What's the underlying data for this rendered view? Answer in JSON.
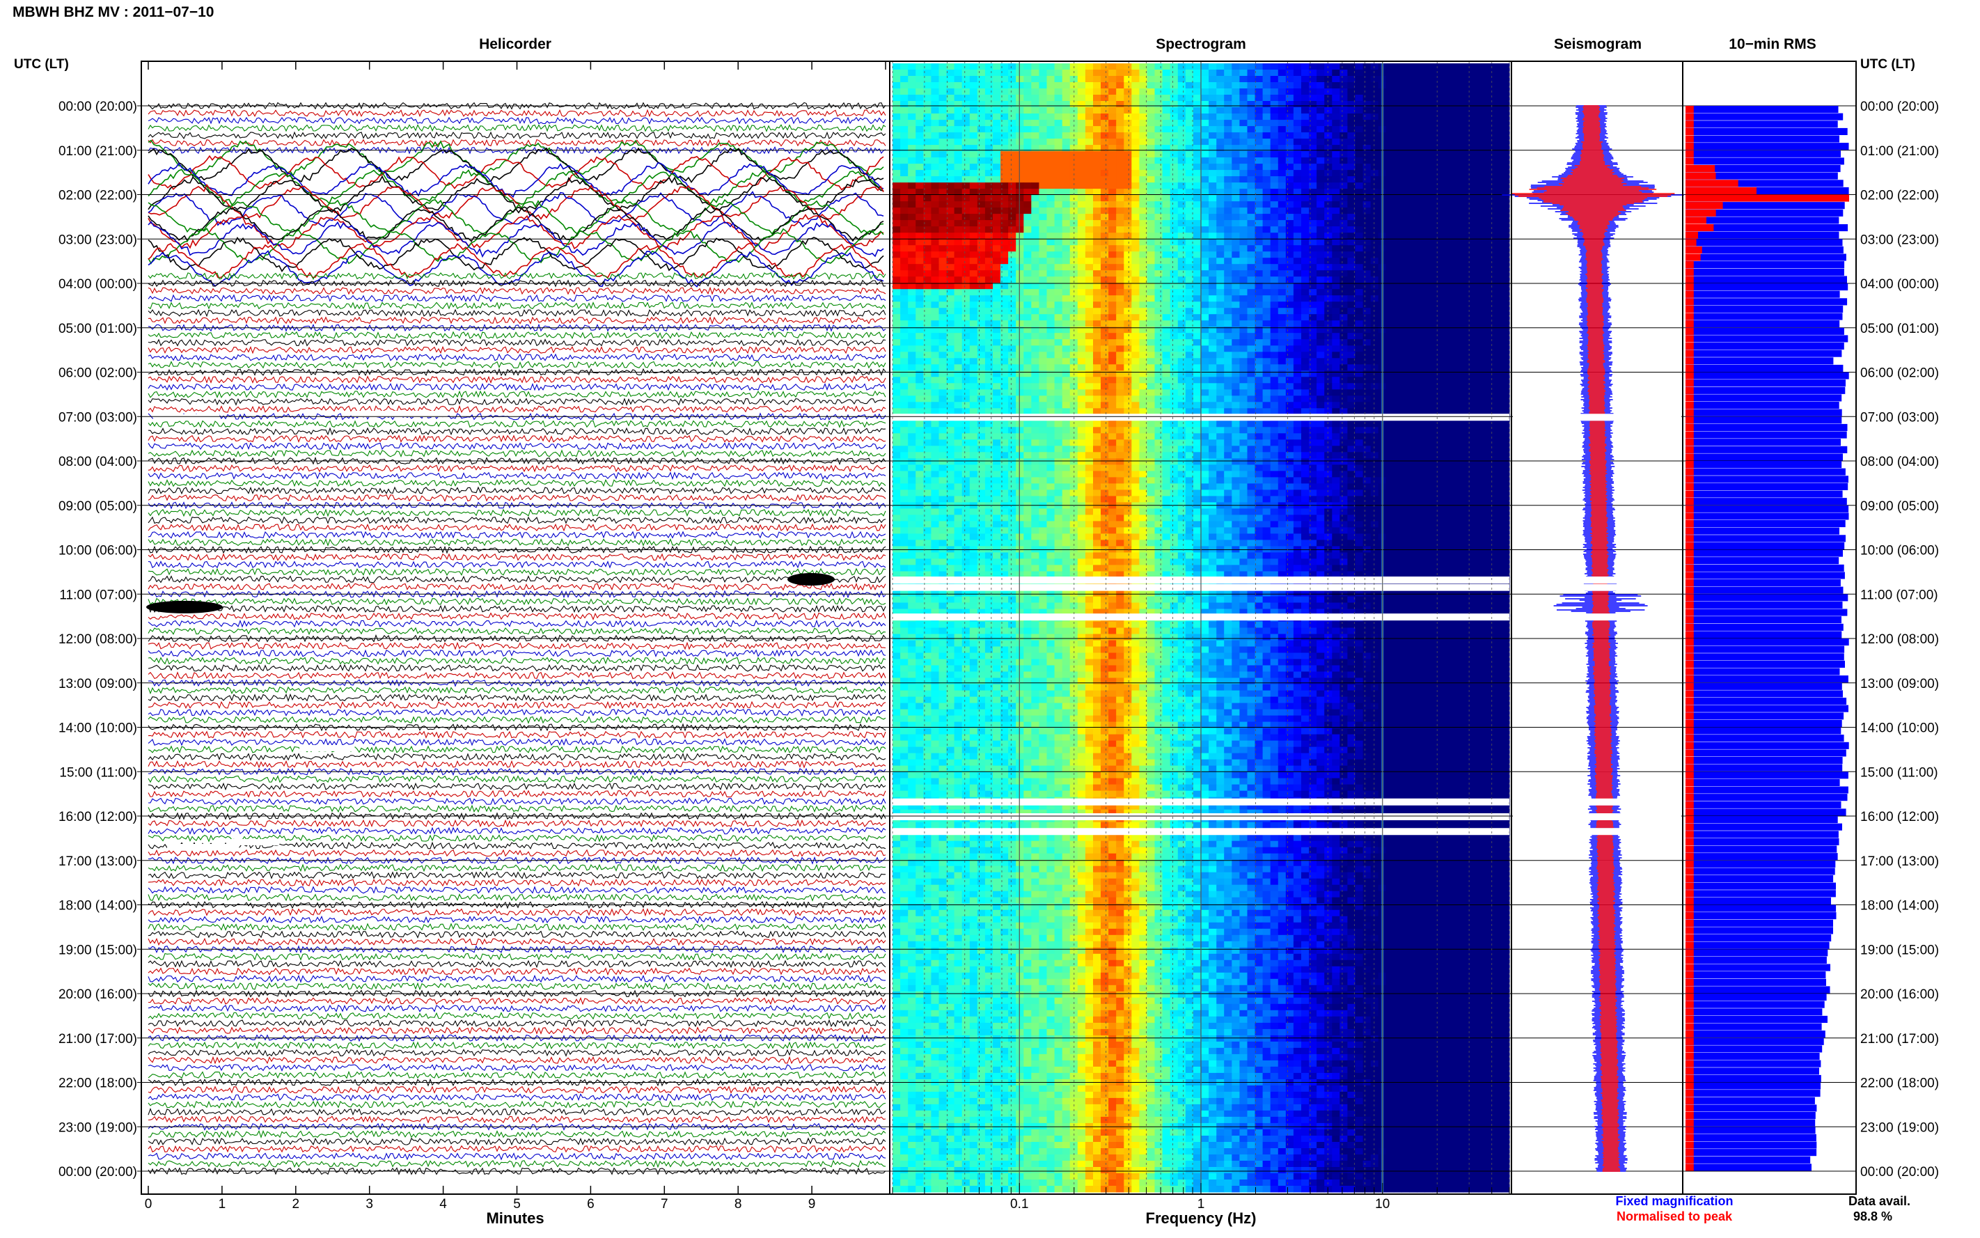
{
  "header": {
    "title": "MBWH BHZ MV : 2011−07−10",
    "time_label": "UTC (LT)"
  },
  "colors": {
    "trace_cycle": [
      "#000000",
      "#cc0000",
      "#0000cc",
      "#008800"
    ],
    "fixed_magnification": "#0000ff",
    "normalised_to_peak": "#ff0000"
  },
  "chart_data": [
    {
      "type": "line",
      "title": "Helicorder",
      "xlabel": "Minutes",
      "xlim": [
        0,
        10
      ],
      "x_ticks": [
        "0",
        "1",
        "2",
        "3",
        "4",
        "5",
        "6",
        "7",
        "8",
        "9"
      ],
      "y_ticks_left": [
        "00:00 (20:00)",
        "01:00 (21:00)",
        "02:00 (22:00)",
        "03:00 (23:00)",
        "04:00 (00:00)",
        "05:00 (01:00)",
        "06:00 (02:00)",
        "07:00 (03:00)",
        "08:00 (04:00)",
        "09:00 (05:00)",
        "10:00 (06:00)",
        "11:00 (07:00)",
        "12:00 (08:00)",
        "13:00 (09:00)",
        "14:00 (10:00)",
        "15:00 (11:00)",
        "16:00 (12:00)",
        "17:00 (13:00)",
        "18:00 (14:00)",
        "19:00 (15:00)",
        "20:00 (16:00)",
        "21:00 (17:00)",
        "22:00 (18:00)",
        "23:00 (19:00)",
        "00:00 (20:00)"
      ],
      "traces_per_hour": 6,
      "large_amplitude_window_utc": [
        "01:10",
        "03:40"
      ],
      "events_utc": [
        "10:40",
        "11:10"
      ]
    },
    {
      "type": "heatmap",
      "title": "Spectrogram",
      "xlabel": "Frequency (Hz)",
      "x_scale": "log",
      "xlim": [
        0.02,
        50
      ],
      "x_ticks": [
        "0.1",
        "1",
        "10"
      ],
      "colormap": "jet",
      "peak_band_hz": [
        0.25,
        0.4
      ],
      "strong_event_utc": [
        "01:40",
        "04:00"
      ],
      "strong_event_freq_hz": [
        0.02,
        0.08
      ],
      "data_gaps_utc": [
        "07:00",
        "10:40",
        "10:50",
        "11:30",
        "15:40",
        "16:00",
        "16:20"
      ]
    },
    {
      "type": "line",
      "title": "Seismogram",
      "series": [
        {
          "name": "Fixed magnification",
          "color": "#0000ff"
        },
        {
          "name": "Normalised to peak",
          "color": "#ff0000"
        }
      ],
      "peak_utc": "02:00"
    },
    {
      "type": "bar",
      "title": "10−min RMS",
      "y_ticks_right": [
        "00:00 (20:00)",
        "01:00 (21:00)",
        "02:00 (22:00)",
        "03:00 (23:00)",
        "04:00 (00:00)",
        "05:00 (01:00)",
        "06:00 (02:00)",
        "07:00 (03:00)",
        "08:00 (04:00)",
        "09:00 (05:00)",
        "10:00 (06:00)",
        "11:00 (07:00)",
        "12:00 (08:00)",
        "13:00 (09:00)",
        "14:00 (10:00)",
        "15:00 (11:00)",
        "16:00 (12:00)",
        "17:00 (13:00)",
        "18:00 (14:00)",
        "19:00 (15:00)",
        "20:00 (16:00)",
        "21:00 (17:00)",
        "22:00 (18:00)",
        "23:00 (19:00)",
        "00:00 (20:00)"
      ],
      "series": [
        {
          "name": "Fixed magnification",
          "color": "#0000ff",
          "description_values": "near full scale 00:00-16:00, tapering to ~0.75 by 23:00"
        },
        {
          "name": "Normalised to peak",
          "color": "#ff0000",
          "peak_utc": "02:00",
          "peak_value": 1.0,
          "baseline_value": 0.05
        }
      ],
      "data_availability_label": "Data avail.",
      "data_availability": "98.8 %"
    }
  ]
}
